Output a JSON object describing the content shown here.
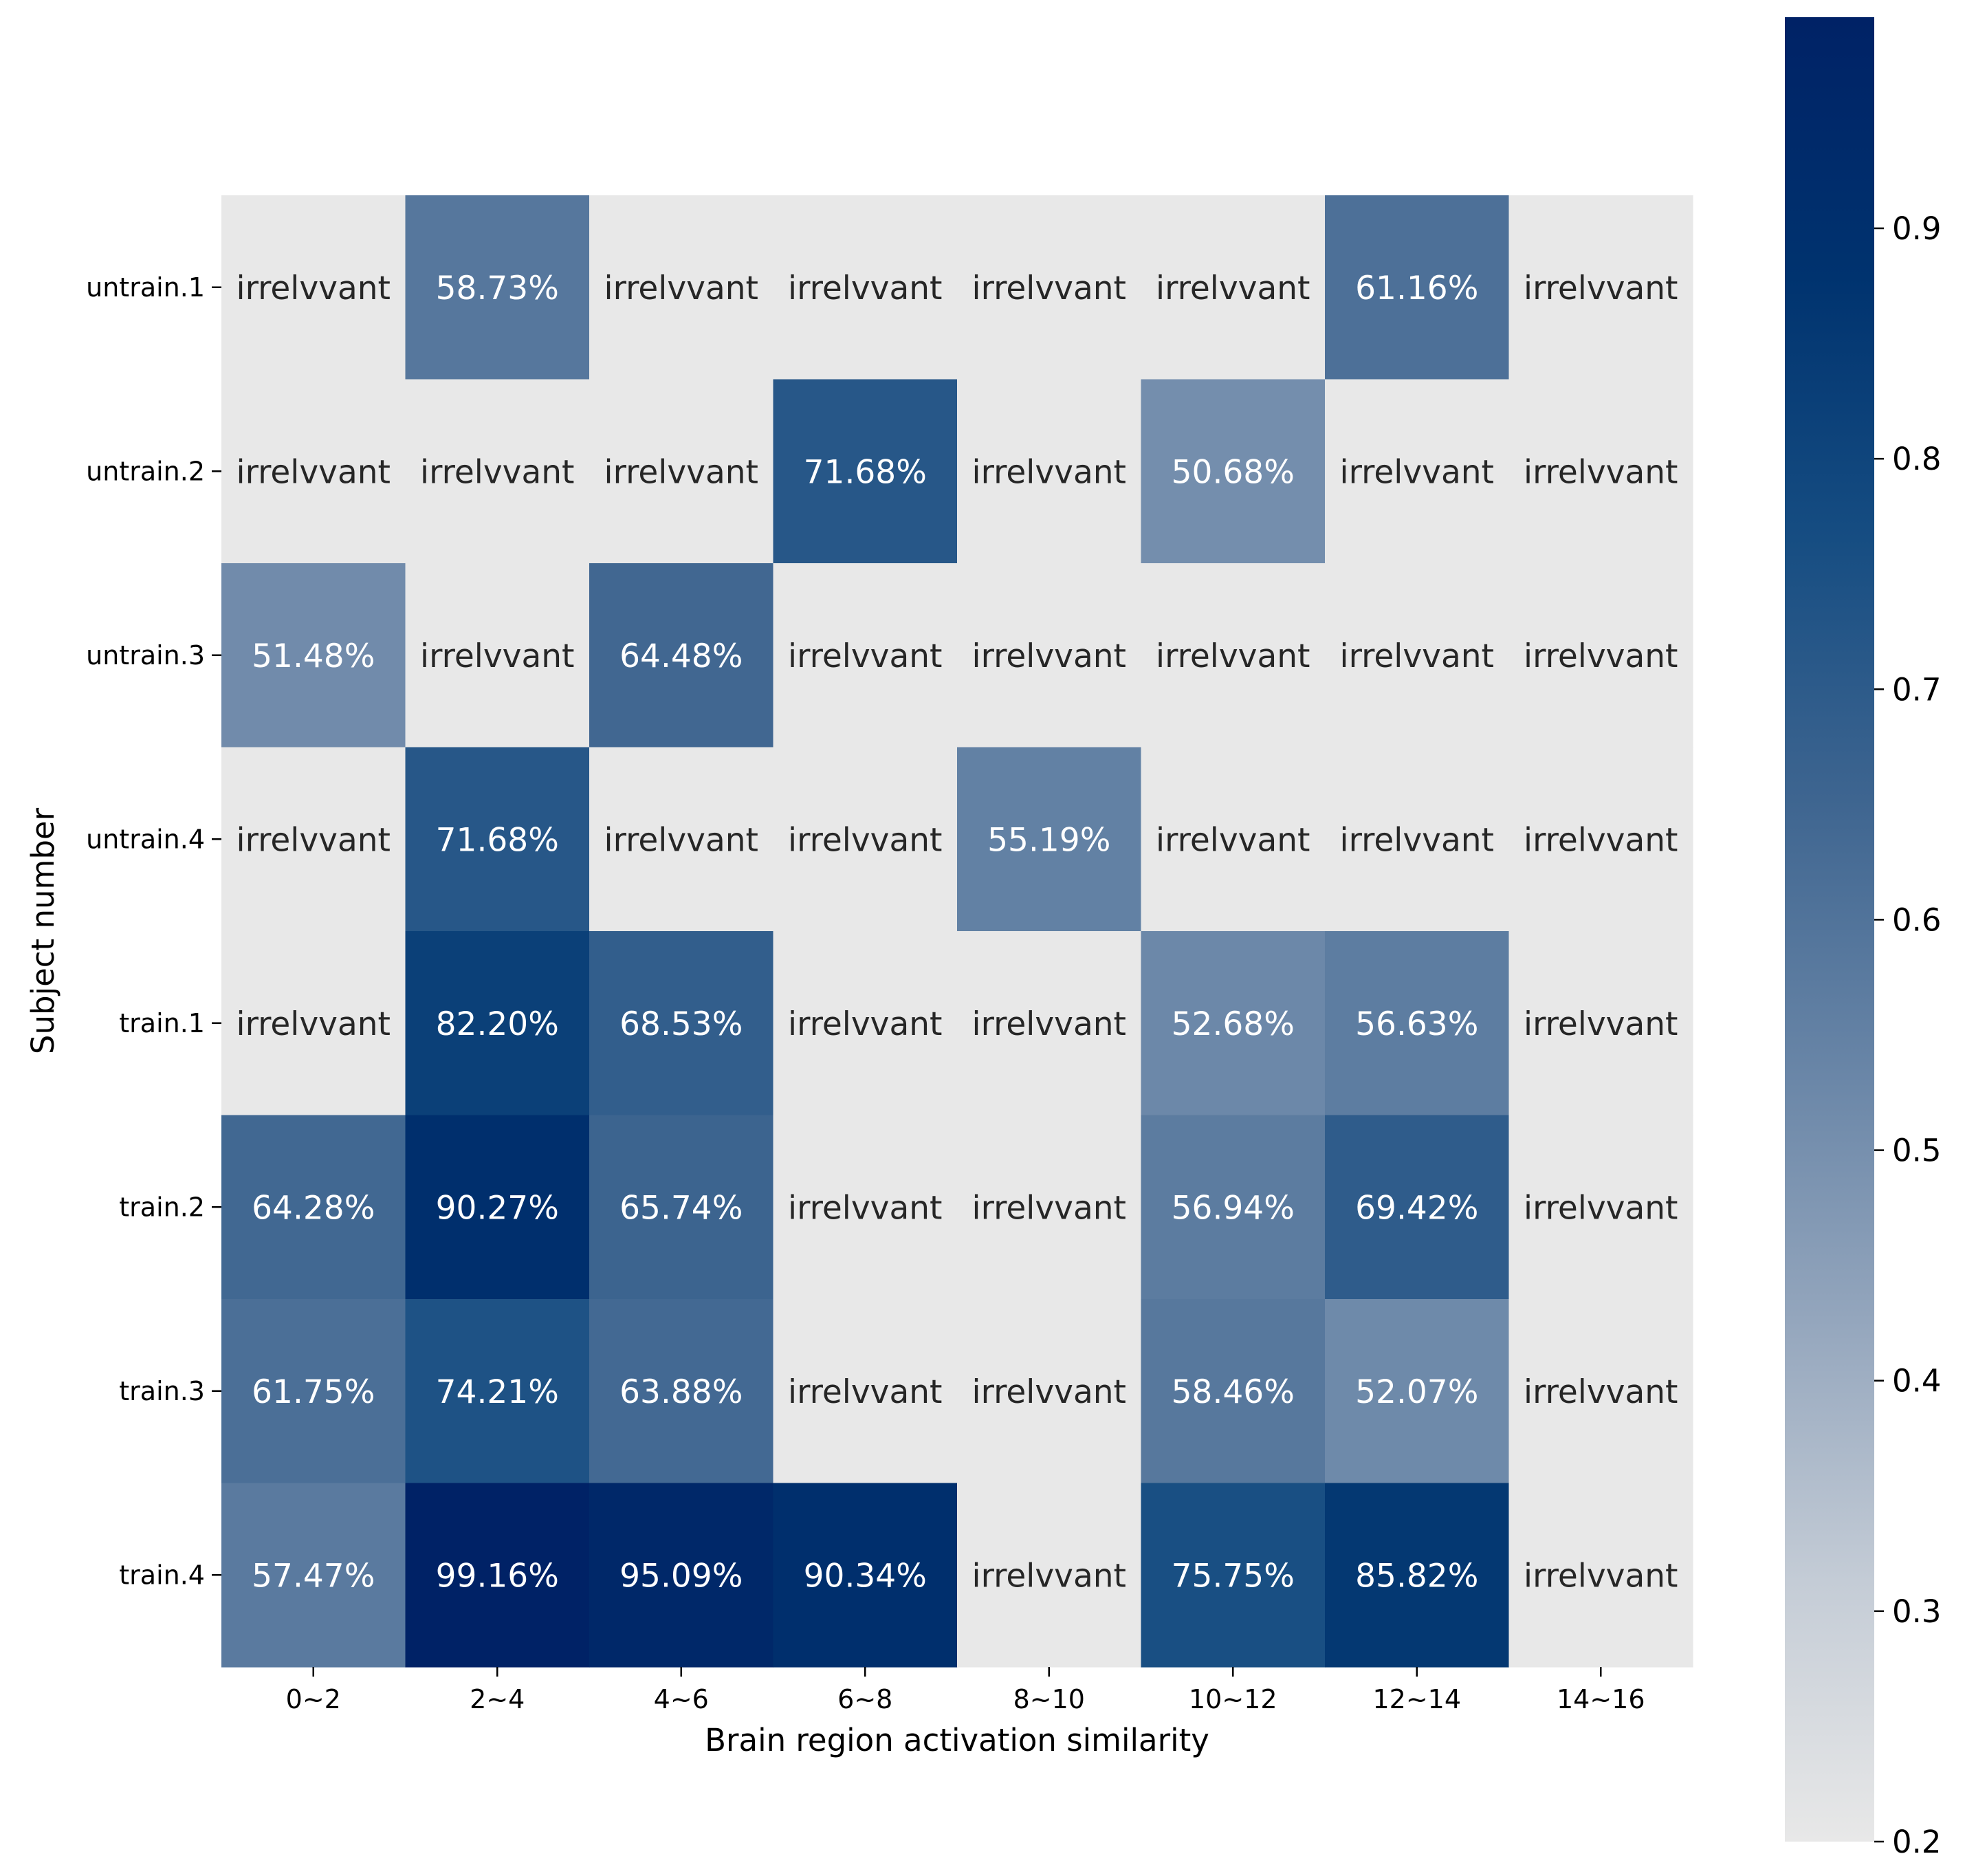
{
  "chart_data": {
    "type": "heatmap",
    "title": "",
    "xlabel": "Brain region activation similarity",
    "ylabel": "Subject number",
    "x_categories": [
      "0~2",
      "2~4",
      "4~6",
      "6~8",
      "8~10",
      "10~12",
      "12~14",
      "14~16"
    ],
    "y_categories": [
      "untrain.1",
      "untrain.2",
      "untrain.3",
      "untrain.4",
      "train.1",
      "train.2",
      "train.3",
      "train.4"
    ],
    "values": [
      [
        null,
        0.5873,
        null,
        null,
        null,
        null,
        0.6116,
        null
      ],
      [
        null,
        null,
        null,
        0.7168,
        null,
        0.5068,
        null,
        null
      ],
      [
        0.5148,
        null,
        0.6448,
        null,
        null,
        null,
        null,
        null
      ],
      [
        null,
        0.7168,
        null,
        null,
        0.5519,
        null,
        null,
        null
      ],
      [
        null,
        0.822,
        0.6853,
        null,
        null,
        0.5268,
        0.5663,
        null
      ],
      [
        0.6428,
        0.9027,
        0.6574,
        null,
        null,
        0.5694,
        0.6942,
        null
      ],
      [
        0.6175,
        0.7421,
        0.6388,
        null,
        null,
        0.5846,
        0.5207,
        null
      ],
      [
        0.5747,
        0.9916,
        0.9509,
        0.9034,
        null,
        0.7575,
        0.8582,
        null
      ]
    ],
    "cell_text": [
      [
        "irrelvvant",
        "58.73%",
        "irrelvvant",
        "irrelvvant",
        "irrelvvant",
        "irrelvvant",
        "61.16%",
        "irrelvvant"
      ],
      [
        "irrelvvant",
        "irrelvvant",
        "irrelvvant",
        "71.68%",
        "irrelvvant",
        "50.68%",
        "irrelvvant",
        "irrelvvant"
      ],
      [
        "51.48%",
        "irrelvvant",
        "64.48%",
        "irrelvvant",
        "irrelvvant",
        "irrelvvant",
        "irrelvvant",
        "irrelvvant"
      ],
      [
        "irrelvvant",
        "71.68%",
        "irrelvvant",
        "irrelvvant",
        "55.19%",
        "irrelvvant",
        "irrelvvant",
        "irrelvvant"
      ],
      [
        "irrelvvant",
        "82.20%",
        "68.53%",
        "irrelvvant",
        "irrelvvant",
        "52.68%",
        "56.63%",
        "irrelvvant"
      ],
      [
        "64.28%",
        "90.27%",
        "65.74%",
        "irrelvvant",
        "irrelvvant",
        "56.94%",
        "69.42%",
        "irrelvvant"
      ],
      [
        "61.75%",
        "74.21%",
        "63.88%",
        "irrelvvant",
        "irrelvvant",
        "58.46%",
        "52.07%",
        "irrelvvant"
      ],
      [
        "57.47%",
        "99.16%",
        "95.09%",
        "90.34%",
        "irrelvvant",
        "75.75%",
        "85.82%",
        "irrelvvant"
      ]
    ],
    "irrelevant_value": 0.2,
    "colorbar": {
      "min": 0.2,
      "max": 0.9916,
      "ticks": [
        0.2,
        0.3,
        0.4,
        0.5,
        0.6,
        0.7,
        0.8,
        0.9
      ],
      "tick_labels": [
        "0.2",
        "0.3",
        "0.4",
        "0.5",
        "0.6",
        "0.7",
        "0.8",
        "0.9"
      ],
      "colors": [
        "#e8e8e8",
        "#c4ccd6",
        "#94a6bd",
        "#6784a6",
        "#3e6590",
        "#164d82",
        "#00336f",
        "#002266"
      ]
    },
    "colors": {
      "light_text": "#ffffff",
      "dark_text": "#262626"
    }
  }
}
